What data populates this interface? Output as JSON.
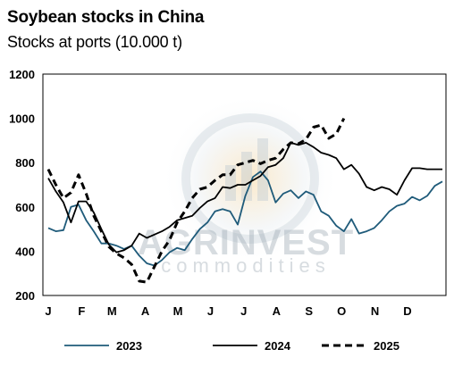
{
  "chart_data": {
    "type": "line",
    "title": "Soybean stocks in China",
    "subtitle": "Stocks at ports (10.000 t)",
    "xlabel": "",
    "ylabel": "",
    "ylim": [
      200,
      1200
    ],
    "yticks": [
      200,
      400,
      600,
      800,
      1000,
      1200
    ],
    "xlim": [
      0,
      52
    ],
    "xticks": [
      {
        "label": "J",
        "week": 0
      },
      {
        "label": "F",
        "week": 4.4
      },
      {
        "label": "M",
        "week": 8.4
      },
      {
        "label": "A",
        "week": 12.8
      },
      {
        "label": "M",
        "week": 17.1
      },
      {
        "label": "J",
        "week": 21.4
      },
      {
        "label": "J",
        "week": 25.8
      },
      {
        "label": "A",
        "week": 30.1
      },
      {
        "label": "S",
        "week": 34.4
      },
      {
        "label": "O",
        "week": 38.7
      },
      {
        "label": "N",
        "week": 43.1
      },
      {
        "label": "D",
        "week": 47.4
      }
    ],
    "grid": false,
    "legend_position": "bottom",
    "watermark": {
      "line1": "AGRINVEST",
      "line2": "commodities"
    },
    "series": [
      {
        "name": "2023",
        "color": "#1f5b7a",
        "style": "solid",
        "values": [
          [
            0,
            505
          ],
          [
            1,
            490
          ],
          [
            2,
            495
          ],
          [
            3,
            600
          ],
          [
            4,
            610
          ],
          [
            5,
            540
          ],
          [
            6,
            490
          ],
          [
            7,
            435
          ],
          [
            8,
            435
          ],
          [
            9,
            425
          ],
          [
            10,
            410
          ],
          [
            11,
            425
          ],
          [
            12,
            380
          ],
          [
            13,
            345
          ],
          [
            14,
            335
          ],
          [
            15,
            360
          ],
          [
            16,
            395
          ],
          [
            17,
            415
          ],
          [
            18,
            405
          ],
          [
            19,
            455
          ],
          [
            20,
            500
          ],
          [
            21,
            530
          ],
          [
            22,
            580
          ],
          [
            23,
            590
          ],
          [
            24,
            580
          ],
          [
            25,
            520
          ],
          [
            26,
            650
          ],
          [
            27,
            735
          ],
          [
            28,
            760
          ],
          [
            29,
            720
          ],
          [
            30,
            620
          ],
          [
            31,
            660
          ],
          [
            32,
            675
          ],
          [
            33,
            640
          ],
          [
            34,
            670
          ],
          [
            35,
            655
          ],
          [
            36,
            580
          ],
          [
            37,
            560
          ],
          [
            38,
            515
          ],
          [
            39,
            490
          ],
          [
            40,
            545
          ],
          [
            41,
            480
          ],
          [
            42,
            490
          ],
          [
            43,
            505
          ],
          [
            44,
            540
          ],
          [
            45,
            580
          ],
          [
            46,
            605
          ],
          [
            47,
            615
          ],
          [
            48,
            645
          ],
          [
            49,
            630
          ],
          [
            50,
            650
          ],
          [
            51,
            695
          ],
          [
            52,
            715
          ]
        ]
      },
      {
        "name": "2024",
        "color": "#000000",
        "style": "solid",
        "values": [
          [
            0,
            730
          ],
          [
            1,
            670
          ],
          [
            2,
            620
          ],
          [
            3,
            530
          ],
          [
            4,
            625
          ],
          [
            5,
            625
          ],
          [
            6,
            575
          ],
          [
            7,
            500
          ],
          [
            8,
            430
          ],
          [
            9,
            395
          ],
          [
            10,
            405
          ],
          [
            11,
            425
          ],
          [
            12,
            480
          ],
          [
            13,
            460
          ],
          [
            14,
            475
          ],
          [
            15,
            490
          ],
          [
            16,
            510
          ],
          [
            17,
            540
          ],
          [
            18,
            550
          ],
          [
            19,
            560
          ],
          [
            20,
            595
          ],
          [
            21,
            625
          ],
          [
            22,
            640
          ],
          [
            23,
            690
          ],
          [
            24,
            685
          ],
          [
            25,
            700
          ],
          [
            26,
            700
          ],
          [
            27,
            720
          ],
          [
            28,
            740
          ],
          [
            29,
            780
          ],
          [
            30,
            790
          ],
          [
            31,
            820
          ],
          [
            32,
            890
          ],
          [
            33,
            880
          ],
          [
            34,
            890
          ],
          [
            35,
            870
          ],
          [
            36,
            845
          ],
          [
            37,
            835
          ],
          [
            38,
            820
          ],
          [
            39,
            770
          ],
          [
            40,
            790
          ],
          [
            41,
            750
          ],
          [
            42,
            690
          ],
          [
            43,
            675
          ],
          [
            44,
            690
          ],
          [
            45,
            680
          ],
          [
            46,
            655
          ],
          [
            47,
            720
          ],
          [
            48,
            775
          ],
          [
            49,
            775
          ],
          [
            50,
            770
          ],
          [
            51,
            770
          ],
          [
            52,
            770
          ]
        ]
      },
      {
        "name": "2025",
        "color": "#000000",
        "style": "dashed",
        "values": [
          [
            0,
            770
          ],
          [
            1,
            700
          ],
          [
            2,
            640
          ],
          [
            3,
            665
          ],
          [
            4,
            745
          ],
          [
            5,
            660
          ],
          [
            6,
            560
          ],
          [
            7,
            490
          ],
          [
            8,
            420
          ],
          [
            9,
            390
          ],
          [
            10,
            370
          ],
          [
            11,
            340
          ],
          [
            12,
            265
          ],
          [
            13,
            260
          ],
          [
            14,
            330
          ],
          [
            15,
            400
          ],
          [
            16,
            450
          ],
          [
            17,
            530
          ],
          [
            18,
            580
          ],
          [
            19,
            640
          ],
          [
            20,
            680
          ],
          [
            21,
            690
          ],
          [
            22,
            720
          ],
          [
            23,
            745
          ],
          [
            24,
            745
          ],
          [
            25,
            790
          ],
          [
            26,
            800
          ],
          [
            27,
            810
          ],
          [
            28,
            795
          ],
          [
            29,
            810
          ],
          [
            30,
            820
          ],
          [
            31,
            860
          ],
          [
            32,
            890
          ],
          [
            33,
            885
          ],
          [
            34,
            905
          ],
          [
            35,
            960
          ],
          [
            36,
            970
          ],
          [
            37,
            910
          ],
          [
            38,
            930
          ],
          [
            39,
            1000
          ]
        ]
      }
    ]
  }
}
